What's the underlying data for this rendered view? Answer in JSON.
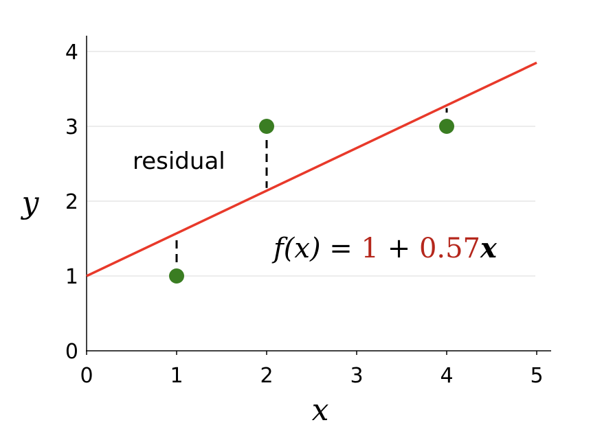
{
  "chart_data": {
    "type": "scatter",
    "xlabel": "x",
    "ylabel": "y",
    "xlim": [
      0,
      5
    ],
    "ylim": [
      0,
      4
    ],
    "xticks": [
      "0",
      "1",
      "2",
      "3",
      "4",
      "5"
    ],
    "yticks": [
      "0",
      "1",
      "2",
      "3",
      "4"
    ],
    "grid": "horizontal",
    "points": [
      {
        "x": 1,
        "y": 1
      },
      {
        "x": 2,
        "y": 3
      },
      {
        "x": 4,
        "y": 3
      }
    ],
    "fit_line": {
      "intercept": 1,
      "slope": 0.57,
      "x_range": [
        0,
        5
      ]
    },
    "residuals_shown_at_x": [
      1,
      2,
      4
    ],
    "annotation": "residual",
    "equation": {
      "lhs": "f(x) = ",
      "intercept": "1",
      "plus": " + ",
      "slope": "0.57",
      "var": "x"
    },
    "colors": {
      "points": "#3a7d22",
      "line": "#e8392a",
      "coefficients": "#b5271c",
      "grid": "#e0e0e0"
    }
  }
}
